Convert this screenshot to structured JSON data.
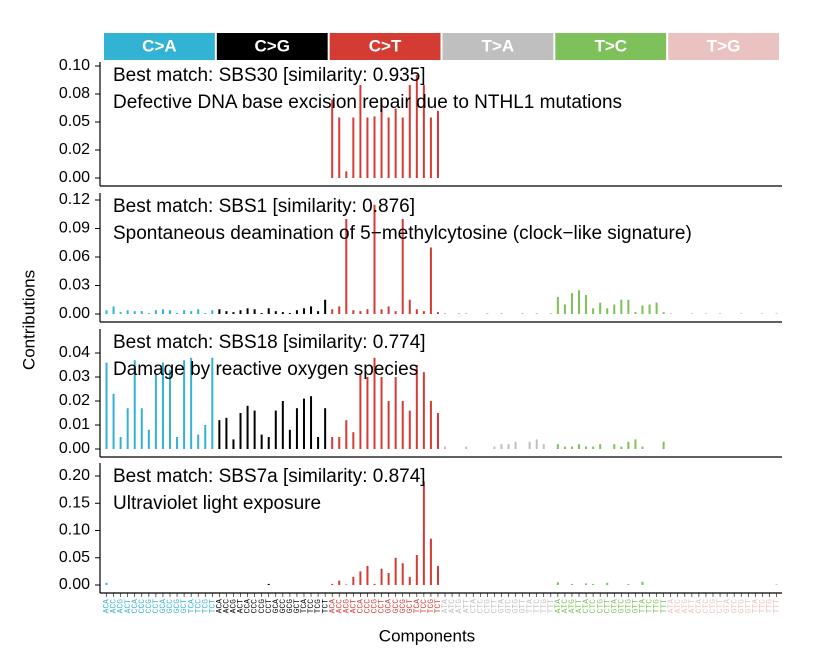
{
  "chart_data": {
    "type": "bar",
    "ylabel": "Contributions",
    "xlabel": "Components",
    "groups": [
      {
        "name": "C>A",
        "color": "#33b3d4"
      },
      {
        "name": "C>G",
        "color": "#000000"
      },
      {
        "name": "C>T",
        "color": "#d33b33"
      },
      {
        "name": "T>A",
        "color": "#bfbfbf"
      },
      {
        "name": "T>C",
        "color": "#7ec05a"
      },
      {
        "name": "T>G",
        "color": "#ebc2c2"
      }
    ],
    "categories": [
      "ACA",
      "ACC",
      "ACG",
      "ACT",
      "CCA",
      "CCC",
      "CCG",
      "CCT",
      "GCA",
      "GCC",
      "GCG",
      "GCT",
      "TCA",
      "TCC",
      "TCG",
      "TCT",
      "ACA",
      "ACC",
      "ACG",
      "ACT",
      "CCA",
      "CCC",
      "CCG",
      "CCT",
      "GCA",
      "GCC",
      "GCG",
      "GCT",
      "TCA",
      "TCC",
      "TCG",
      "TCT",
      "ACA",
      "ACC",
      "ACG",
      "ACT",
      "CCA",
      "CCC",
      "CCG",
      "CCT",
      "GCA",
      "GCC",
      "GCG",
      "GCT",
      "TCA",
      "TCC",
      "TCG",
      "TCT",
      "ATA",
      "ATC",
      "ATG",
      "ATT",
      "CTA",
      "CTC",
      "CTG",
      "CTT",
      "GTA",
      "GTC",
      "GTG",
      "GTT",
      "TTA",
      "TTC",
      "TTG",
      "TTT",
      "ATA",
      "ATC",
      "ATG",
      "ATT",
      "CTA",
      "CTC",
      "CTG",
      "CTT",
      "GTA",
      "GTC",
      "GTG",
      "GTT",
      "TTA",
      "TTC",
      "TTG",
      "TTT",
      "ATA",
      "ATC",
      "ATG",
      "ATT",
      "CTA",
      "CTC",
      "CTG",
      "CTT",
      "GTA",
      "GTC",
      "GTG",
      "GTT",
      "TTA",
      "TTC",
      "TTG",
      "TTT"
    ],
    "panels": [
      {
        "match": "Best match: SBS30 [similarity: 0.935]",
        "description": "Defective DNA base excision repair due to NTHL1 mutations",
        "ylim": [
          0,
          0.1
        ],
        "yticks": [
          {
            "value": 0,
            "label": "0.00"
          },
          {
            "value": 0.025,
            "label": "0.02"
          },
          {
            "value": 0.05,
            "label": "0.05"
          },
          {
            "value": 0.075,
            "label": "0.08"
          },
          {
            "value": 0.1,
            "label": "0.10"
          }
        ],
        "values": [
          0,
          0,
          0,
          0,
          0,
          0,
          0,
          0,
          0,
          0,
          0,
          0,
          0,
          0,
          0,
          0,
          0,
          0,
          0,
          0,
          0,
          0,
          0,
          0,
          0,
          0,
          0,
          0,
          0,
          0,
          0,
          0,
          0.07,
          0.054,
          0.006,
          0.054,
          0.083,
          0.054,
          0.055,
          0.07,
          0.054,
          0.062,
          0.054,
          0.083,
          0.092,
          0.083,
          0.054,
          0.06,
          0,
          0,
          0,
          0,
          0,
          0,
          0,
          0,
          0,
          0,
          0,
          0,
          0,
          0,
          0,
          0,
          0,
          0,
          0,
          0,
          0,
          0,
          0,
          0,
          0,
          0,
          0,
          0,
          0,
          0,
          0,
          0,
          0,
          0,
          0,
          0,
          0,
          0,
          0,
          0,
          0,
          0,
          0,
          0,
          0,
          0,
          0,
          0
        ]
      },
      {
        "match": "Best match: SBS1 [similarity: 0.876]",
        "description": "Spontaneous deamination of 5−methylcytosine (clock−like signature)",
        "ylim": [
          0,
          0.12
        ],
        "yticks": [
          {
            "value": 0,
            "label": "0.00"
          },
          {
            "value": 0.03,
            "label": "0.03"
          },
          {
            "value": 0.06,
            "label": "0.06"
          },
          {
            "value": 0.09,
            "label": "0.09"
          },
          {
            "value": 0.12,
            "label": "0.12"
          }
        ],
        "values": [
          0.004,
          0.008,
          0.002,
          0.004,
          0.003,
          0.003,
          0.001,
          0.004,
          0.005,
          0.004,
          0.001,
          0.004,
          0.003,
          0.005,
          0.001,
          0.004,
          0.005,
          0.003,
          0.002,
          0.004,
          0.006,
          0.005,
          0.001,
          0.006,
          0.003,
          0.002,
          0.001,
          0.004,
          0.006,
          0.008,
          0.003,
          0.015,
          0.005,
          0.008,
          0.1,
          0.004,
          0.003,
          0.005,
          0.115,
          0.005,
          0.008,
          0.003,
          0.1,
          0.015,
          0.005,
          0.003,
          0.07,
          0.002,
          0.001,
          0,
          0.001,
          0.001,
          0,
          0,
          0.001,
          0,
          0.001,
          0,
          0,
          0.001,
          0,
          0.001,
          0,
          0.001,
          0.018,
          0.01,
          0.022,
          0.025,
          0.02,
          0.006,
          0.012,
          0.006,
          0.01,
          0.015,
          0.015,
          0.002,
          0.009,
          0.01,
          0.012,
          0.002,
          0.001,
          0,
          0,
          0.001,
          0,
          0.001,
          0,
          0.001,
          0,
          0,
          0.001,
          0,
          0,
          0.001,
          0,
          0.001
        ]
      },
      {
        "match": "Best match: SBS18 [similarity: 0.774]",
        "description": "Damage by reactive oxygen species",
        "ylim": [
          0,
          0.04
        ],
        "yticks": [
          {
            "value": 0,
            "label": "0.00"
          },
          {
            "value": 0.01,
            "label": "0.01"
          },
          {
            "value": 0.02,
            "label": "0.02"
          },
          {
            "value": 0.03,
            "label": "0.03"
          },
          {
            "value": 0.04,
            "label": "0.04"
          }
        ],
        "values": [
          0.036,
          0.023,
          0.005,
          0.017,
          0.037,
          0.017,
          0.008,
          0.031,
          0.036,
          0.033,
          0.005,
          0.037,
          0.038,
          0.006,
          0.01,
          0.038,
          0.012,
          0.013,
          0.004,
          0.015,
          0.018,
          0.016,
          0.006,
          0.005,
          0.016,
          0.02,
          0.008,
          0.017,
          0.021,
          0.022,
          0.005,
          0.017,
          0.005,
          0.005,
          0.012,
          0.007,
          0.031,
          0.03,
          0.038,
          0.03,
          0.02,
          0.03,
          0.02,
          0.016,
          0.035,
          0.032,
          0.02,
          0.015,
          0.001,
          0,
          0,
          0.001,
          0,
          0,
          0,
          0.001,
          0.002,
          0.002,
          0.003,
          0,
          0.003,
          0.004,
          0.002,
          0,
          0.002,
          0.001,
          0.001,
          0.002,
          0.001,
          0.001,
          0.002,
          0,
          0.002,
          0.001,
          0.003,
          0.004,
          0.001,
          0,
          0,
          0.003,
          0,
          0,
          0,
          0,
          0,
          0,
          0,
          0,
          0,
          0,
          0,
          0,
          0,
          0,
          0,
          0
        ]
      },
      {
        "match": "Best match: SBS7a [similarity: 0.874]",
        "description": "Ultraviolet light exposure",
        "ylim": [
          0,
          0.2
        ],
        "yticks": [
          {
            "value": 0,
            "label": "0.00"
          },
          {
            "value": 0.05,
            "label": "0.05"
          },
          {
            "value": 0.1,
            "label": "0.10"
          },
          {
            "value": 0.15,
            "label": "0.15"
          },
          {
            "value": 0.2,
            "label": "0.20"
          }
        ],
        "values": [
          0.004,
          0,
          0,
          0,
          0,
          0,
          0,
          0,
          0,
          0,
          0,
          0,
          0,
          0,
          0,
          0,
          0,
          0,
          0,
          0,
          0,
          0,
          0,
          0.002,
          0,
          0,
          0,
          0,
          0,
          0,
          0,
          0,
          0.002,
          0.008,
          0.001,
          0.015,
          0.025,
          0.035,
          0.002,
          0.03,
          0.022,
          0.05,
          0.04,
          0.015,
          0.055,
          0.19,
          0.085,
          0.035,
          0,
          0,
          0,
          0,
          0,
          0,
          0,
          0,
          0,
          0,
          0,
          0,
          0,
          0,
          0,
          0,
          0.005,
          0,
          0.002,
          0,
          0.003,
          0.002,
          0,
          0.004,
          0,
          0,
          0.002,
          0,
          0.006,
          0,
          0,
          0,
          0,
          0,
          0,
          0,
          0,
          0,
          0,
          0,
          0,
          0,
          0,
          0,
          0,
          0,
          0,
          0.002
        ]
      }
    ]
  }
}
